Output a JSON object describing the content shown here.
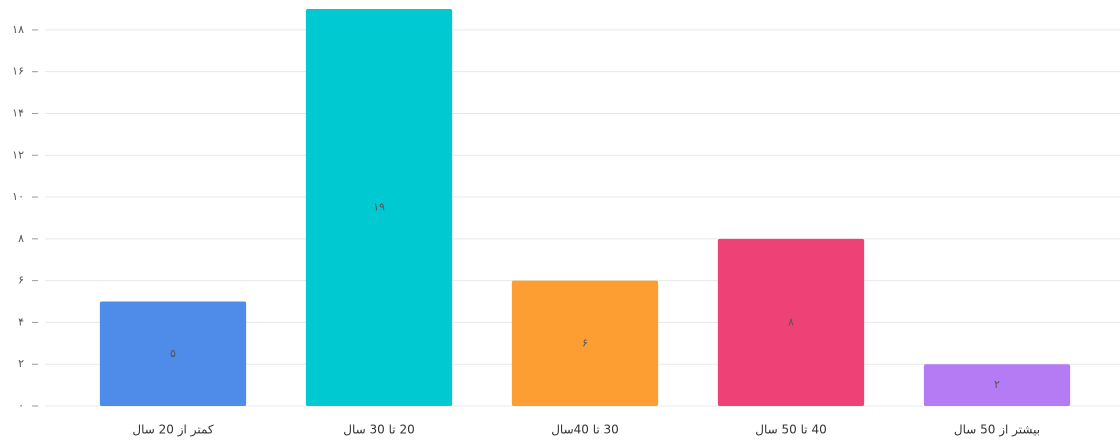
{
  "chart_data": {
    "type": "bar",
    "categories": [
      "کمتر از 20 سال",
      "20 تا 30 سال",
      "30 تا 40سال",
      "40 تا 50 سال",
      "بیشتر از 50 سال"
    ],
    "values": [
      5,
      19,
      6,
      8,
      2
    ],
    "value_labels": [
      "۵",
      "۱۹",
      "۶",
      "۸",
      "۲"
    ],
    "colors": [
      "#4f8be8",
      "#00c9d1",
      "#fd9e33",
      "#ee4277",
      "#b57bf4"
    ],
    "ylim": [
      0,
      19
    ],
    "yticks": [
      {
        "value": 0,
        "label": "۰"
      },
      {
        "value": 2,
        "label": "۲"
      },
      {
        "value": 4,
        "label": "۴"
      },
      {
        "value": 6,
        "label": "۶"
      },
      {
        "value": 8,
        "label": "۸"
      },
      {
        "value": 10,
        "label": "۱۰"
      },
      {
        "value": 12,
        "label": "۱۲"
      },
      {
        "value": 14,
        "label": "۱۴"
      },
      {
        "value": 16,
        "label": "۱۶"
      },
      {
        "value": 18,
        "label": "۱۸"
      }
    ],
    "grid": true
  }
}
